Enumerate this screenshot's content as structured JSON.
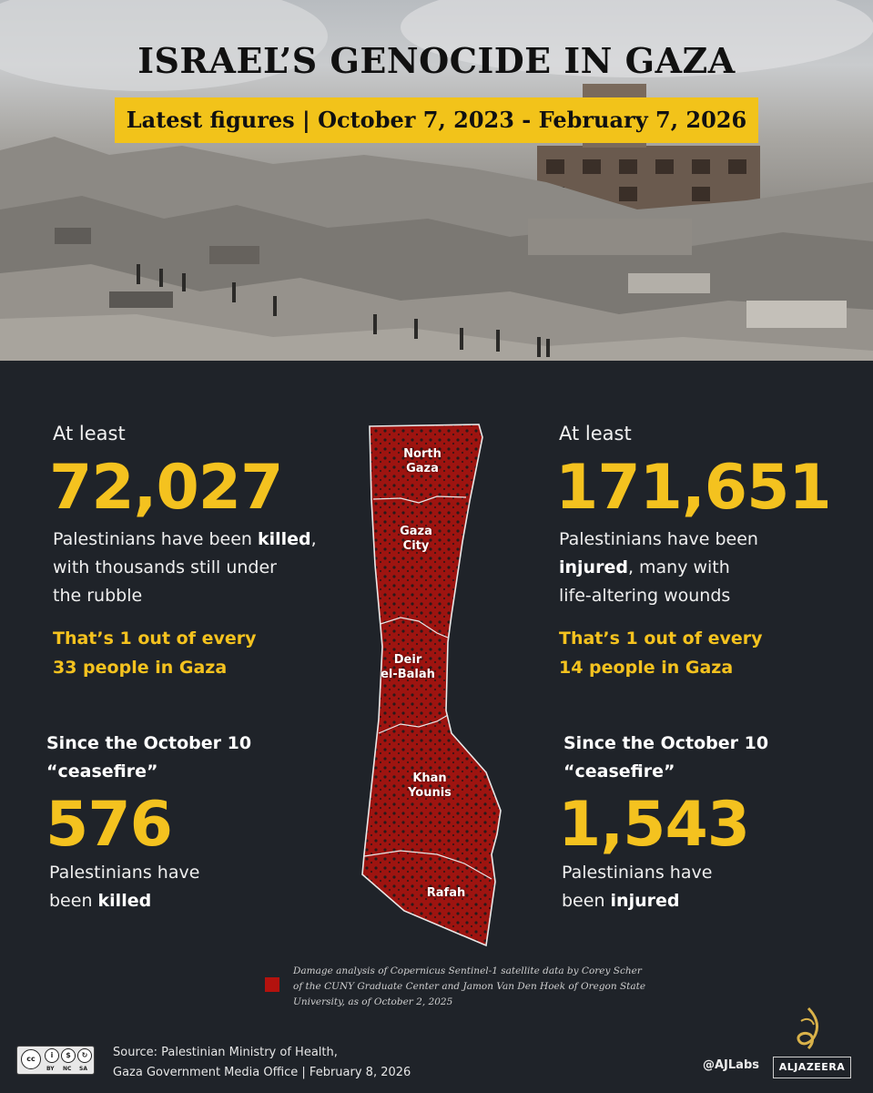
{
  "header": {
    "title": "ISRAEL’S GENOCIDE IN GAZA",
    "subtitle": "Latest figures | October 7, 2023 - February 7, 2026"
  },
  "killed": {
    "lead": "At least",
    "number": "72,027",
    "text_before": "Palestinians have been ",
    "text_bold": "killed",
    "text_after": ",",
    "line2": "with thousands still under",
    "line3": "the rubble",
    "ratio_line1": "That’s 1 out of every",
    "ratio_line2": "33 people in Gaza",
    "since_line1": "Since the October 10",
    "since_line2": "“ceasefire”",
    "since_number": "576",
    "since_text1": "Palestinians have",
    "since_text2_before": "been ",
    "since_text2_bold": "killed"
  },
  "injured": {
    "lead": "At least",
    "number": "171,651",
    "line1": "Palestinians have been",
    "line2_bold": "injured",
    "line2_after": ", many with",
    "line3": "life-altering wounds",
    "ratio_line1": "That’s 1 out of every",
    "ratio_line2": "14 people in Gaza",
    "since_line1": "Since the October 10",
    "since_line2": "“ceasefire”",
    "since_number": "1,543",
    "since_text1": "Palestinians have",
    "since_text2_before": "been ",
    "since_text2_bold": "injured"
  },
  "map": {
    "regions": [
      {
        "line1": "North",
        "line2": "Gaza"
      },
      {
        "line1": "Gaza",
        "line2": "City"
      },
      {
        "line1": "Deir",
        "line2": "el-Balah"
      },
      {
        "line1": "Khan",
        "line2": "Younis"
      },
      {
        "line1": "Rafah",
        "line2": ""
      }
    ],
    "damage_color": "#b3120e"
  },
  "legend": {
    "line1": "Damage analysis of Copernicus Sentinel-1 satellite data by  Corey Scher",
    "line2": "of the CUNY Graduate Center and Jamon Van Den Hoek of Oregon State",
    "line3": "University, as of  October 2, 2025"
  },
  "footer": {
    "cc_labels": [
      "BY",
      "NC",
      "SA"
    ],
    "source_line1": "Source:  Palestinian Ministry of Health,",
    "source_line2": "Gaza Government Media Office   |   February 8, 2026",
    "handle": "@AJLabs",
    "brand": "ALJAZEERA"
  },
  "colors": {
    "accent_yellow": "#f4c21f",
    "background": "#1f2329",
    "map_red": "#b3120e"
  }
}
